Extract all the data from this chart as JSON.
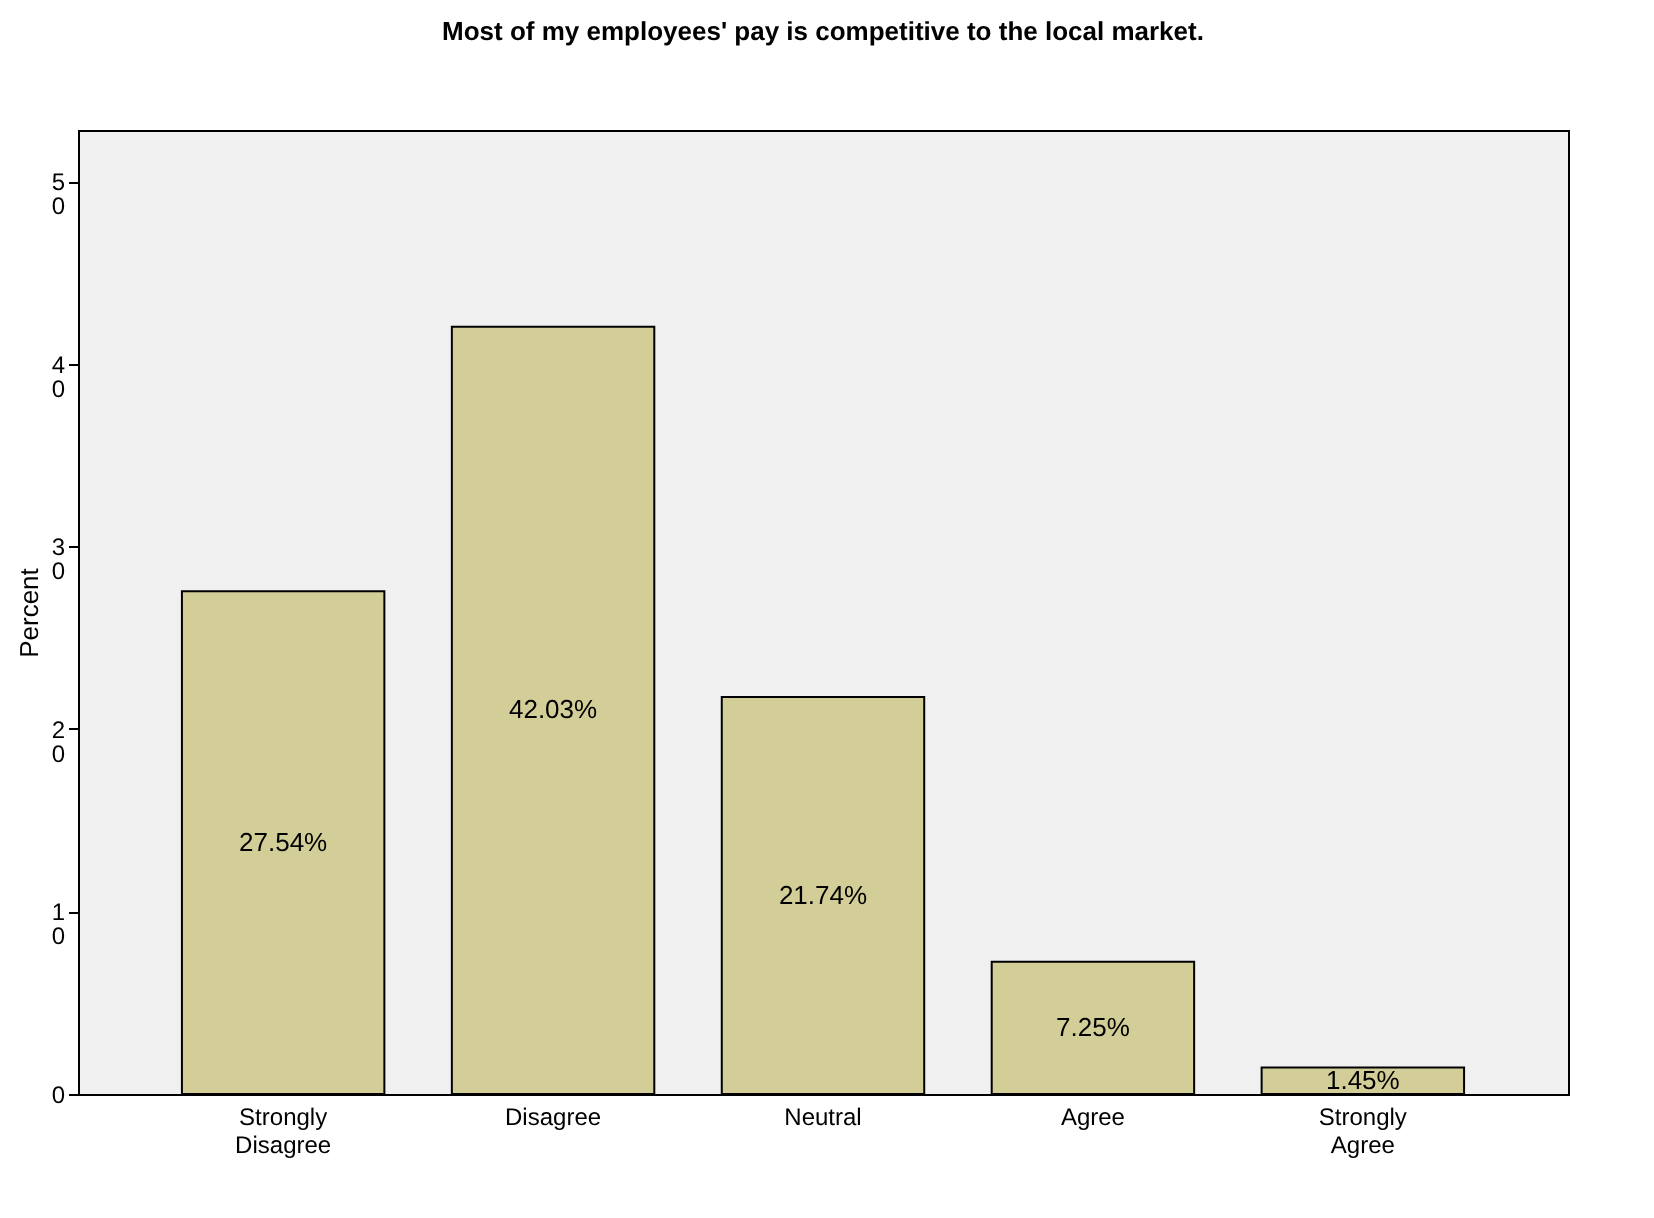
{
  "chart_data": {
    "type": "bar",
    "title": "Most of my employees' pay is competitive to the local market.",
    "ylabel": "Percent",
    "categories": [
      "Strongly Disagree",
      "Disagree",
      "Neutral",
      "Agree",
      "Strongly Agree"
    ],
    "values": [
      27.54,
      42.03,
      21.74,
      7.25,
      1.45
    ],
    "value_labels": [
      "27.54%",
      "42.03%",
      "21.74%",
      "7.25%",
      "1.45%"
    ],
    "color": "#d3ce97",
    "ylim": [
      0,
      52.8
    ],
    "yticks": [
      0,
      10,
      20,
      30,
      40,
      50
    ],
    "grid": false
  }
}
